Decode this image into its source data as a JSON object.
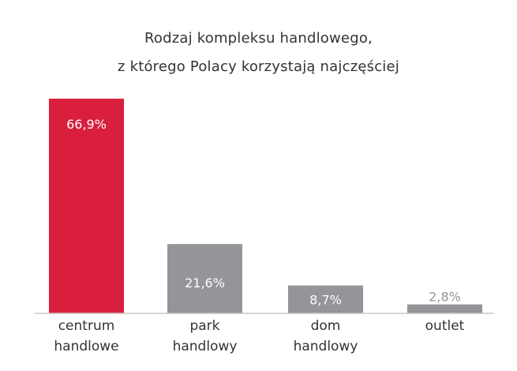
{
  "chart_data": {
    "type": "bar",
    "title": [
      "Rodzaj kompleksu handlowego,",
      "z którego Polacy korzystają najczęściej"
    ],
    "categories": [
      [
        "centrum",
        "handlowe"
      ],
      [
        "park",
        "handlowy"
      ],
      [
        "dom",
        "handlowy"
      ],
      [
        "outlet"
      ]
    ],
    "values": [
      66.9,
      21.6,
      8.7,
      2.8
    ],
    "value_labels": [
      "66,9%",
      "21,6%",
      "8,7%",
      "2,8%"
    ],
    "unit": "%",
    "ylim": [
      0,
      66.9
    ],
    "grid": false,
    "bar_colors": [
      "#d91f3d",
      "#939598",
      "#939598",
      "#939598"
    ],
    "label_colors": [
      "#ffffff",
      "#ffffff",
      "#ffffff",
      "#939598"
    ],
    "axis_color": "#c8c8c8",
    "text_color": "#333333"
  }
}
